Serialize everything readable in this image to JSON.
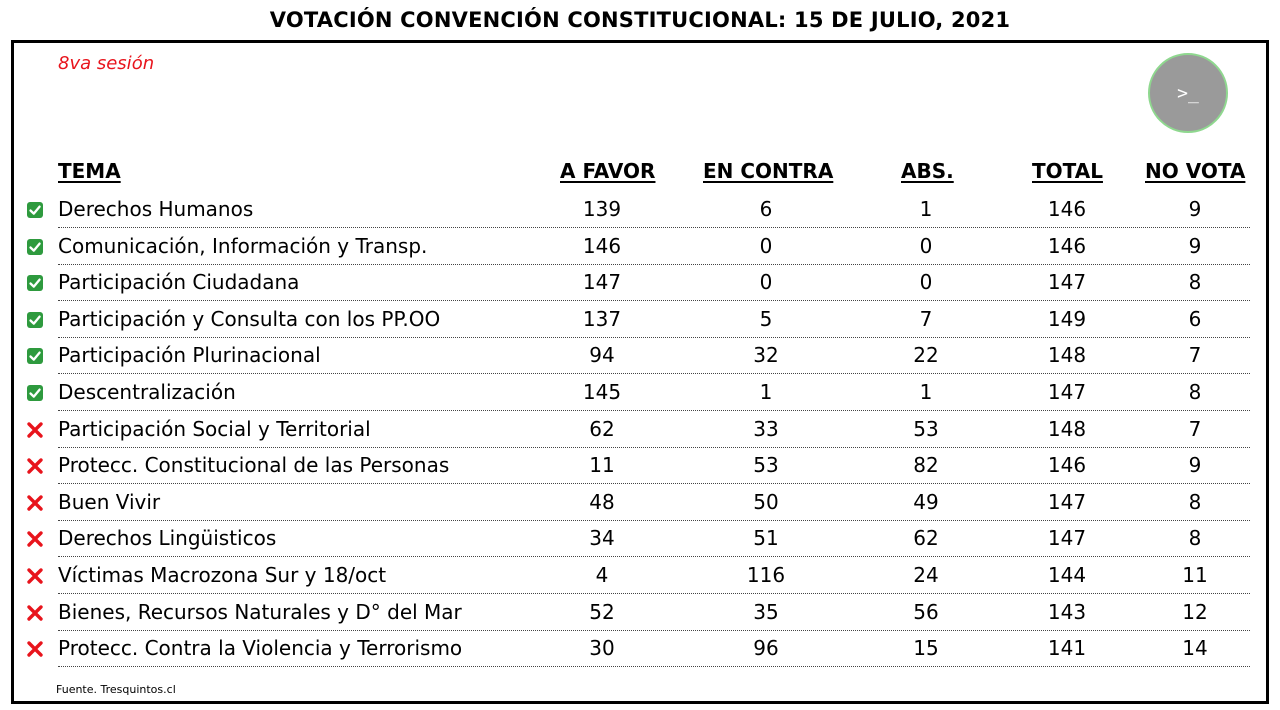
{
  "title": "VOTACIÓN CONVENCIÓN CONSTITUCIONAL: 15 DE JULIO, 2021",
  "session": "8va sesión",
  "terminal_icon": "terminal-icon",
  "terminal_glyph": ">_",
  "colors": {
    "session_red": "#e8141c",
    "check_green": "#2e9a3e",
    "cross_red": "#e8141c"
  },
  "table": {
    "headers": [
      "TEMA",
      "A FAVOR",
      "EN CONTRA",
      "ABS.",
      "TOTAL",
      "NO VOTA"
    ],
    "rows": [
      {
        "status": "approved",
        "tema": "Derechos Humanos",
        "a_favor": "139",
        "en_contra": "6",
        "abs": "1",
        "total": "146",
        "no_vota": "9"
      },
      {
        "status": "approved",
        "tema": "Comunicación, Información y Transp.",
        "a_favor": "146",
        "en_contra": "0",
        "abs": "0",
        "total": "146",
        "no_vota": "9"
      },
      {
        "status": "approved",
        "tema": "Participación Ciudadana",
        "a_favor": "147",
        "en_contra": "0",
        "abs": "0",
        "total": "147",
        "no_vota": "8"
      },
      {
        "status": "approved",
        "tema": "Participación y Consulta con los PP.OO",
        "a_favor": "137",
        "en_contra": "5",
        "abs": "7",
        "total": "149",
        "no_vota": "6"
      },
      {
        "status": "approved",
        "tema": "Participación Plurinacional",
        "a_favor": "94",
        "en_contra": "32",
        "abs": "22",
        "total": "148",
        "no_vota": "7"
      },
      {
        "status": "approved",
        "tema": "Descentralización",
        "a_favor": "145",
        "en_contra": "1",
        "abs": "1",
        "total": "147",
        "no_vota": "8"
      },
      {
        "status": "rejected",
        "tema": "Participación Social y Territorial",
        "a_favor": "62",
        "en_contra": "33",
        "abs": "53",
        "total": "148",
        "no_vota": "7"
      },
      {
        "status": "rejected",
        "tema": "Protecc. Constitucional de las Personas",
        "a_favor": "11",
        "en_contra": "53",
        "abs": "82",
        "total": "146",
        "no_vota": "9"
      },
      {
        "status": "rejected",
        "tema": "Buen Vivir",
        "a_favor": "48",
        "en_contra": "50",
        "abs": "49",
        "total": "147",
        "no_vota": "8"
      },
      {
        "status": "rejected",
        "tema": "Derechos Lingüisticos",
        "a_favor": "34",
        "en_contra": "51",
        "abs": "62",
        "total": "147",
        "no_vota": "8"
      },
      {
        "status": "rejected",
        "tema": "Víctimas Macrozona Sur y 18/oct",
        "a_favor": "4",
        "en_contra": "116",
        "abs": "24",
        "total": "144",
        "no_vota": "11"
      },
      {
        "status": "rejected",
        "tema": "Bienes, Recursos Naturales y D° del Mar",
        "a_favor": "52",
        "en_contra": "35",
        "abs": "56",
        "total": "143",
        "no_vota": "12"
      },
      {
        "status": "rejected",
        "tema": "Protecc. Contra la Violencia y Terrorismo",
        "a_favor": "30",
        "en_contra": "96",
        "abs": "15",
        "total": "141",
        "no_vota": "14"
      }
    ]
  },
  "source": "Fuente. Tresquintos.cl"
}
